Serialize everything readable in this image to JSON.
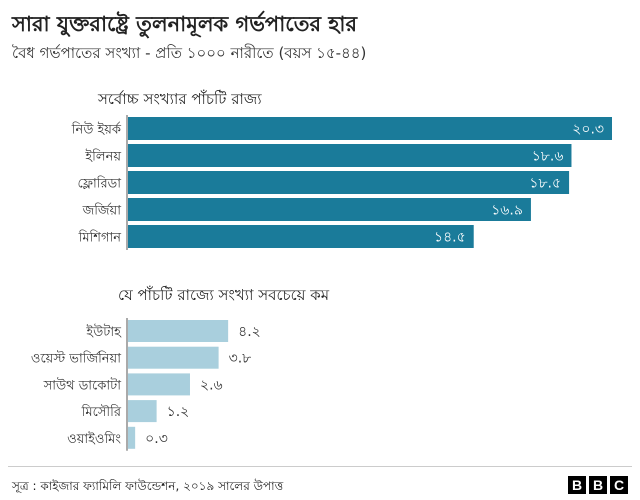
{
  "title": "সারা যুক্তরাষ্ট্রে তুলনামূলক গর্ভপাতের হার",
  "subtitle": "বৈধ গর্ভপাতের সংখ্যা -  প্রতি ১০০০ নারীতে (বয়স ১৫-৪৪)",
  "source": "সূত্র : কাইজার ফ্যামিলি ফাউন্ডেশন, ২০১৯ সালের উপাত্ত",
  "logo": [
    "B",
    "B",
    "C"
  ],
  "colors": {
    "top": "#1a7b9a",
    "bottom": "#a9cfdd"
  },
  "chart_data": [
    {
      "type": "bar",
      "orientation": "horizontal",
      "title": "সর্বোচ্চ সংখ্যার পাঁচটি রাজ্য",
      "categories": [
        "নিউ ইয়র্ক",
        "ইলিনয়",
        "ফ্লোরিডা",
        "জর্জিয়া",
        "মিশিগান"
      ],
      "values": [
        20.3,
        18.6,
        18.5,
        16.9,
        14.5
      ],
      "value_labels": [
        "২০.৩",
        "১৮.৬",
        "১৮.৫",
        "১৬.৯",
        "১৪.৫"
      ],
      "label_position": "inside-end",
      "xlim": [
        0,
        20.3
      ]
    },
    {
      "type": "bar",
      "orientation": "horizontal",
      "title": "যে পাঁচটি রাজ্যে সংখ্যা সবচেয়ে কম",
      "categories": [
        "ইউটাহ",
        "ওয়েস্ট ভার্জিনিয়া",
        "সাউথ ডাকোটা",
        "মিসৌরি",
        "ওয়াইওমিং"
      ],
      "values": [
        4.2,
        3.8,
        2.6,
        1.2,
        0.3
      ],
      "value_labels": [
        "৪.২",
        "৩.৮",
        "২.৬",
        "১.২",
        "০.৩"
      ],
      "label_position": "outside-end",
      "xlim": [
        0,
        20.3
      ]
    }
  ]
}
